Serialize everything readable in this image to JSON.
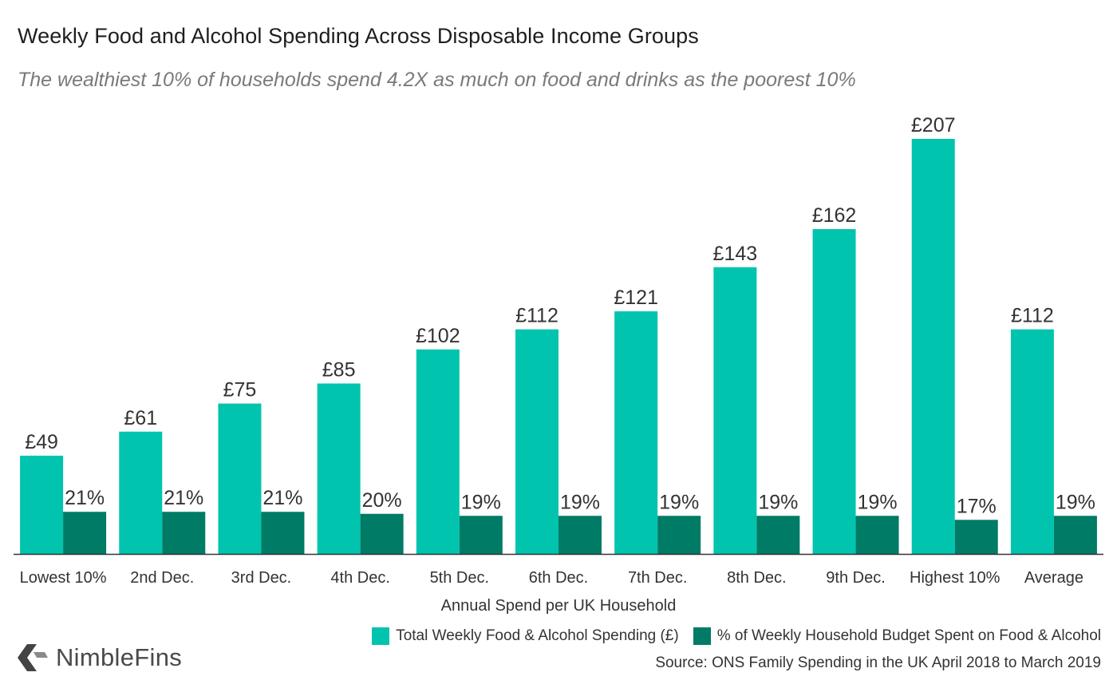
{
  "title": "Weekly Food and Alcohol Spending Across Disposable Income Groups",
  "subtitle": "The wealthiest 10% of households spend 4.2X as much on food and drinks as the poorest 10%",
  "source": "Source: ONS Family Spending in the UK April 2018 to March 2019",
  "brand": {
    "name": "NimbleFins",
    "logo_icon": "chevron-left-logo-icon"
  },
  "colors": {
    "spending": "#00c4ae",
    "percent": "#007b66",
    "axis": "#333333"
  },
  "chart_data": {
    "type": "bar",
    "title": "Weekly Food and Alcohol Spending Across Disposable Income Groups",
    "subtitle": "The wealthiest 10% of households spend 4.2X as much on food and drinks as the poorest 10%",
    "xlabel": "Annual Spend per UK Household",
    "ylabel": "",
    "grid": false,
    "legend_position": "bottom-right",
    "categories": [
      "Lowest 10%",
      "2nd Dec.",
      "3rd Dec.",
      "4th Dec.",
      "5th Dec.",
      "6th Dec.",
      "7th Dec.",
      "8th Dec.",
      "9th Dec.",
      "Highest 10%",
      "Average"
    ],
    "series": [
      {
        "name": "Total Weekly Food & Alcohol Spending (£)",
        "values": [
          49,
          61,
          75,
          85,
          102,
          112,
          121,
          143,
          162,
          207,
          112
        ],
        "labels": [
          "£49",
          "£61",
          "£75",
          "£85",
          "£102",
          "£112",
          "£121",
          "£143",
          "£162",
          "£207",
          "£112"
        ]
      },
      {
        "name": "% of Weekly Household Budget Spent on Food & Alcohol",
        "values": [
          21,
          21,
          21,
          20,
          19,
          19,
          19,
          19,
          19,
          17,
          19
        ],
        "labels": [
          "21%",
          "21%",
          "21%",
          "20%",
          "19%",
          "19%",
          "19%",
          "19%",
          "19%",
          "17%",
          "19%"
        ]
      }
    ]
  }
}
